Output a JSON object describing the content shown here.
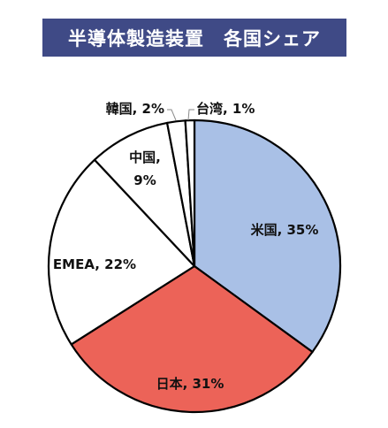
{
  "chart_data": {
    "type": "pie",
    "title": "半導体製造装置　各国シェア",
    "slices": [
      {
        "name": "米国",
        "value": 35,
        "label": "米国, 35%",
        "color": "#a9c0e6"
      },
      {
        "name": "日本",
        "value": 31,
        "label": "日本, 31%",
        "color": "#ec6358"
      },
      {
        "name": "EMEA",
        "value": 22,
        "label": "EMEA, 22%",
        "color": "#ffffff"
      },
      {
        "name": "中国",
        "value": 9,
        "label_lines": [
          "中国,",
          "9%"
        ],
        "color": "#ffffff"
      },
      {
        "name": "韓国",
        "value": 2,
        "label": "韓国, 2%",
        "color": "#ffffff"
      },
      {
        "name": "台湾",
        "value": 1,
        "label": "台湾, 1%",
        "color": "#ffffff"
      }
    ]
  }
}
